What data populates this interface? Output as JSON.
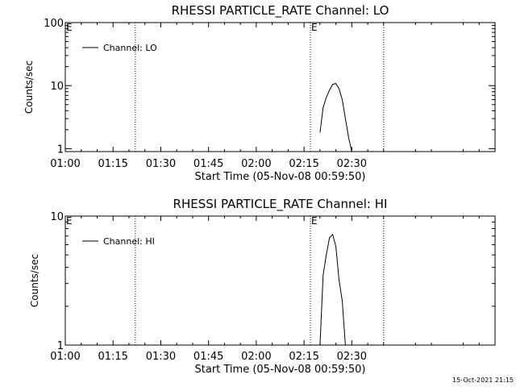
{
  "figure_stamp": "15-Oct-2021 21:15",
  "chart_data": [
    {
      "type": "line",
      "title": "RHESSI PARTICLE_RATE Channel: LO",
      "xlabel": "Start Time (05-Nov-08 00:59:50)",
      "ylabel": "Counts/sec",
      "x_ticks": [
        "01:00",
        "01:15",
        "01:30",
        "01:45",
        "02:00",
        "02:15",
        "02:30"
      ],
      "xlim": [
        "01:00",
        "03:15"
      ],
      "y_scale": "log",
      "ylim": [
        0.9,
        100
      ],
      "y_ticks": [
        "1",
        "10",
        "100"
      ],
      "grid": false,
      "legend_position": "top-left",
      "event_markers": [
        {
          "label": "E",
          "x": "01:00"
        },
        {
          "label": "",
          "x": "01:22"
        },
        {
          "label": "E",
          "x": "02:17"
        },
        {
          "label": "",
          "x": "02:40"
        }
      ],
      "series": [
        {
          "name": "Channel: LO",
          "color": "#000000",
          "points": [
            [
              "02:20",
              1.8
            ],
            [
              "02:21",
              4.5
            ],
            [
              "02:22",
              6.5
            ],
            [
              "02:23",
              8.5
            ],
            [
              "02:24",
              10.5
            ],
            [
              "02:25",
              10.8
            ],
            [
              "02:26",
              9.0
            ],
            [
              "02:27",
              6.0
            ],
            [
              "02:28",
              3.0
            ],
            [
              "02:29",
              1.5
            ],
            [
              "02:30",
              0.9
            ]
          ]
        }
      ]
    },
    {
      "type": "line",
      "title": "RHESSI PARTICLE_RATE Channel: HI",
      "xlabel": "Start Time (05-Nov-08 00:59:50)",
      "ylabel": "Counts/sec",
      "x_ticks": [
        "01:00",
        "01:15",
        "01:30",
        "01:45",
        "02:00",
        "02:15",
        "02:30"
      ],
      "xlim": [
        "01:00",
        "03:15"
      ],
      "y_scale": "log",
      "ylim": [
        1,
        10
      ],
      "y_ticks": [
        "1",
        "10"
      ],
      "grid": false,
      "legend_position": "top-left",
      "event_markers": [
        {
          "label": "E",
          "x": "01:00"
        },
        {
          "label": "",
          "x": "01:22"
        },
        {
          "label": "E",
          "x": "02:17"
        },
        {
          "label": "",
          "x": "02:40"
        }
      ],
      "series": [
        {
          "name": "Channel: HI",
          "color": "#000000",
          "points": [
            [
              "02:20",
              1.0
            ],
            [
              "02:21",
              3.5
            ],
            [
              "02:22",
              5.0
            ],
            [
              "02:23",
              6.8
            ],
            [
              "02:24",
              7.2
            ],
            [
              "02:25",
              5.8
            ],
            [
              "02:26",
              3.2
            ],
            [
              "02:27",
              2.2
            ],
            [
              "02:28",
              1.0
            ]
          ]
        }
      ]
    }
  ]
}
